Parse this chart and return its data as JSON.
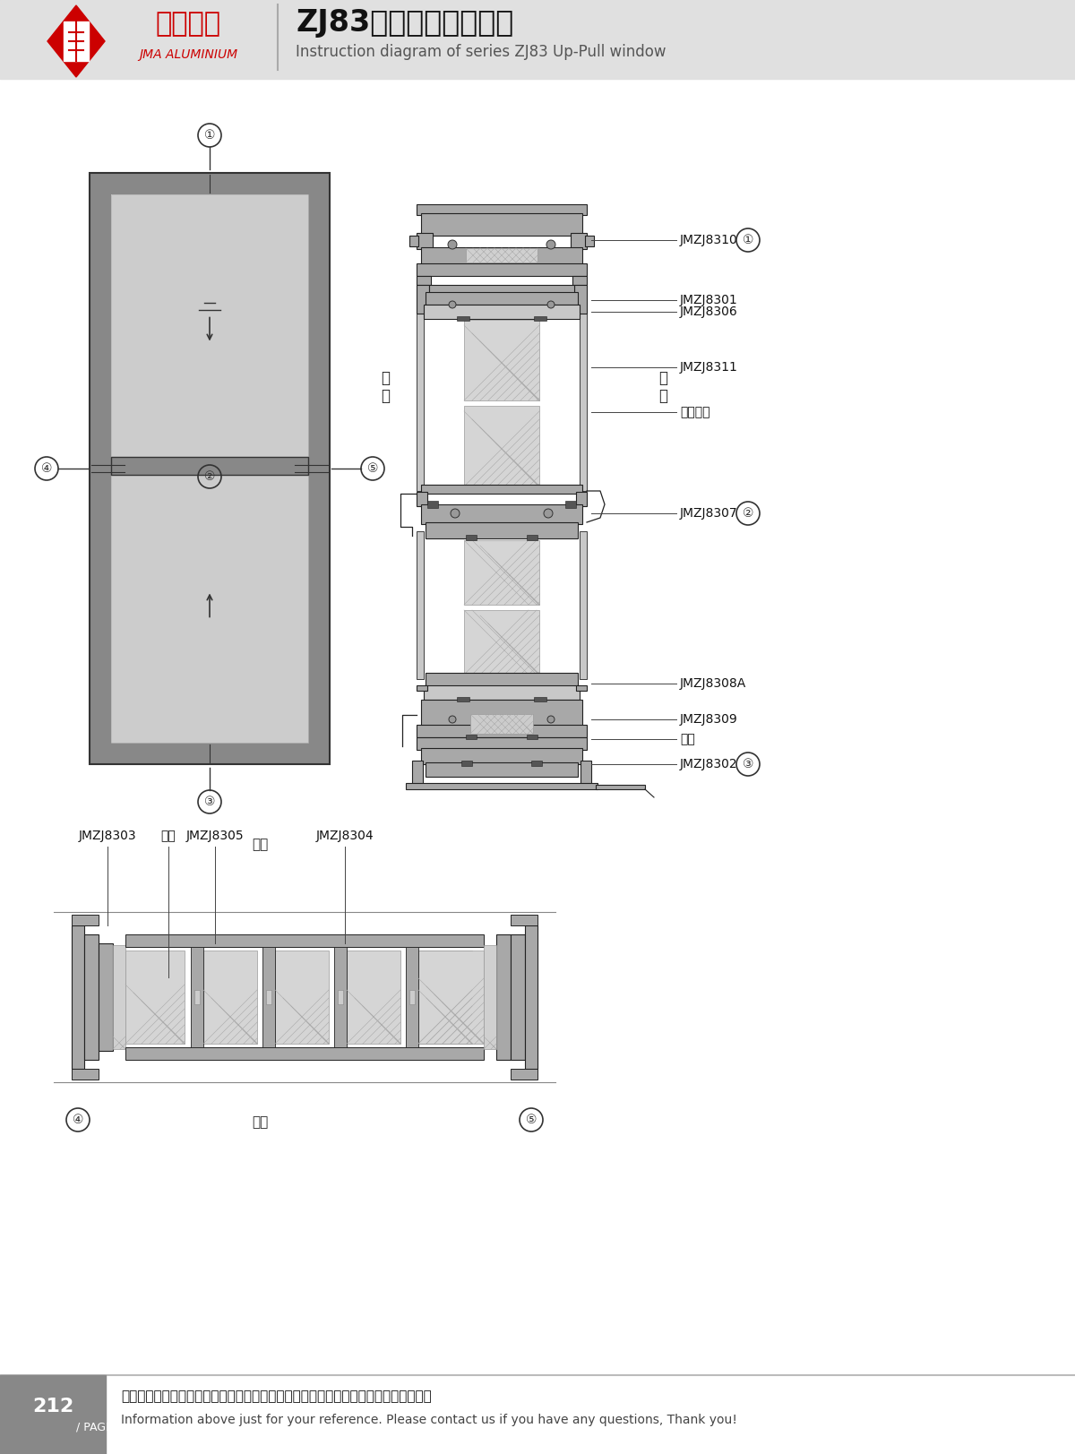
{
  "title_cn": "ZJ83系列提拉窗结构图",
  "title_en": "Instruction diagram of series ZJ83 Up-Pull window",
  "company_cn": "坚美铝业",
  "company_en": "JMA ALUMINIUM",
  "bg_color": "#e8e8e8",
  "page_num": "212",
  "footer_cn": "图中所示型材截面、装配、编号、尺寸及重量仅供参考。如有疑问，请向本公司查询。",
  "footer_en": "Information above just for your reference. Please contact us if you have any questions, Thank you!",
  "labels_right": [
    "JMZJ8310",
    "JMZJ8301",
    "JMZJ8306",
    "JMZJ8311",
    "中空玻璃",
    "JMZJ8307",
    "JMZJ8308A",
    "JMZJ8309",
    "胶条",
    "JMZJ8302"
  ],
  "labels_bottom": [
    "JMZJ8303",
    "胶盖",
    "JMZJ8305",
    "JMZJ8304"
  ],
  "circle_labels": [
    "①",
    "②",
    "③",
    "④",
    "⑤"
  ],
  "room_inner": "室内",
  "room_outer": "室外",
  "frame_color": "#888888",
  "frame_edge": "#333333",
  "line_color": "#333333",
  "section_fc": "#a8a8a8",
  "section_fc_light": "#c8c8c8",
  "section_ec": "#222222",
  "glass_fc": "#d8d8d8",
  "gasket_fc": "#555555",
  "header_bg": "#e0e0e0",
  "footer_bg": "#888888",
  "logo_color": "#cc0000",
  "white": "#ffffff"
}
